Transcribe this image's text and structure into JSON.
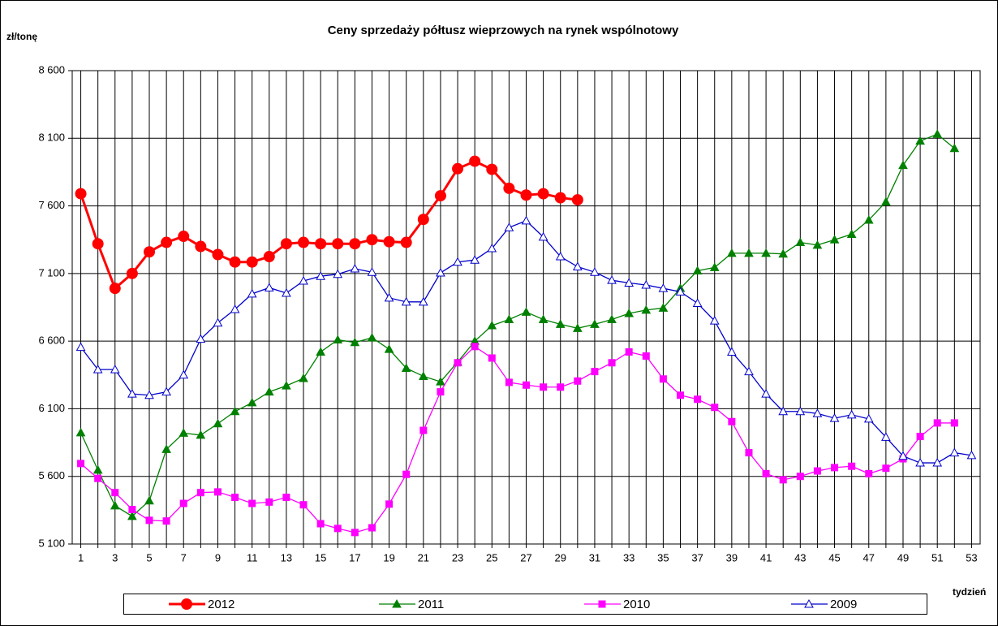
{
  "chart_data": {
    "type": "line",
    "title": "Ceny sprzedaży półtusz wieprzowych na rynek wspólnotowy",
    "y_label": "zł/tonę",
    "x_label": "tydzień",
    "categories": [
      "1",
      null,
      "3",
      null,
      "5",
      null,
      "7",
      null,
      "9",
      null,
      "11",
      null,
      "13",
      null,
      "15",
      null,
      "17",
      null,
      "19",
      null,
      "21",
      null,
      "23",
      null,
      "25",
      null,
      "27",
      null,
      "29",
      null,
      "31",
      null,
      "33",
      null,
      "35",
      null,
      "37",
      null,
      "39",
      null,
      "41",
      null,
      "43",
      null,
      "45",
      null,
      "47",
      null,
      "49",
      null,
      "51",
      null,
      "53"
    ],
    "ylim": [
      5100,
      8600
    ],
    "yticks": [
      {
        "value": 5100,
        "label": "5 100"
      },
      {
        "value": 5600,
        "label": "5 600"
      },
      {
        "value": 6100,
        "label": "6 100"
      },
      {
        "value": 6600,
        "label": "6 600"
      },
      {
        "value": 7100,
        "label": "7 100"
      },
      {
        "value": 7600,
        "label": "7 600"
      },
      {
        "value": 8100,
        "label": "8 100"
      },
      {
        "value": 8600,
        "label": "8 600"
      }
    ],
    "grid": true,
    "legend": "bottom",
    "series": [
      {
        "name": "2012",
        "color": "#ff0000",
        "marker": "circle",
        "values": [
          7690,
          7320,
          6990,
          7100,
          7260,
          7330,
          7375,
          7300,
          7240,
          7185,
          7185,
          7225,
          7320,
          7330,
          7320,
          7320,
          7320,
          7350,
          7335,
          7330,
          7500,
          7675,
          7875,
          7930,
          7870,
          7730,
          7680,
          7690,
          7660,
          7645,
          null,
          null,
          null,
          null,
          null,
          null,
          null,
          null,
          null,
          null,
          null,
          null,
          null,
          null,
          null,
          null,
          null,
          null,
          null,
          null,
          null,
          null,
          null
        ]
      },
      {
        "name": "2011",
        "color": "#008000",
        "marker": "triangle-filled",
        "values": [
          5923,
          5647,
          5383,
          5305,
          5420,
          5800,
          5920,
          5905,
          5990,
          6080,
          6145,
          6225,
          6270,
          6325,
          6520,
          6610,
          6590,
          6625,
          6540,
          6400,
          6340,
          6300,
          6445,
          6600,
          6715,
          6760,
          6815,
          6760,
          6725,
          6695,
          6725,
          6760,
          6805,
          6830,
          6845,
          6990,
          7120,
          7145,
          7250,
          7250,
          7250,
          7245,
          7330,
          7310,
          7350,
          7390,
          7495,
          7630,
          7900,
          8080,
          8130,
          8025,
          null
        ]
      },
      {
        "name": "2010",
        "color": "#ff00ff",
        "marker": "square",
        "values": [
          5695,
          5585,
          5480,
          5355,
          5275,
          5270,
          5400,
          5480,
          5485,
          5445,
          5400,
          5410,
          5445,
          5390,
          5250,
          5215,
          5185,
          5220,
          5395,
          5615,
          5940,
          6225,
          6440,
          6560,
          6475,
          6295,
          6275,
          6260,
          6260,
          6305,
          6375,
          6440,
          6520,
          6490,
          6320,
          6200,
          6170,
          6110,
          6005,
          5775,
          5620,
          5575,
          5600,
          5640,
          5665,
          5675,
          5620,
          5660,
          5730,
          5895,
          5995,
          5995,
          null
        ]
      },
      {
        "name": "2009",
        "color": "#0000cc",
        "marker": "triangle-open",
        "values": [
          6555,
          6390,
          6390,
          6210,
          6200,
          6225,
          6350,
          6615,
          6735,
          6835,
          6950,
          6995,
          6955,
          7045,
          7080,
          7095,
          7135,
          7110,
          6920,
          6890,
          6890,
          7105,
          7185,
          7200,
          7285,
          7440,
          7490,
          7370,
          7225,
          7150,
          7110,
          7050,
          7030,
          7015,
          6990,
          6965,
          6880,
          6750,
          6520,
          6375,
          6210,
          6080,
          6080,
          6065,
          6030,
          6055,
          6025,
          5890,
          5750,
          5700,
          5700,
          5775,
          5755
        ]
      }
    ]
  }
}
